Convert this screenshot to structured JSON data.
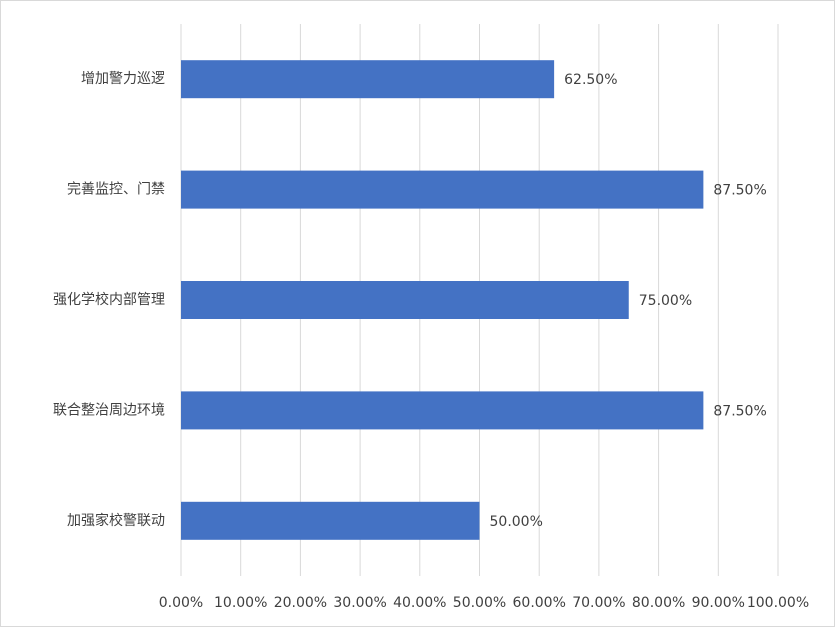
{
  "chart_data": {
    "type": "bar",
    "orientation": "horizontal",
    "categories": [
      "增加警力巡逻",
      "完善监控、门禁",
      "强化学校内部管理",
      "联合整治周边环境",
      "加强家校警联动"
    ],
    "values": [
      62.5,
      87.5,
      75,
      87.5,
      50
    ],
    "value_labels": [
      "62.50%",
      "87.50%",
      "75.00%",
      "87.50%",
      "50.00%"
    ],
    "color": "#4472c4",
    "xlim": [
      0,
      100
    ],
    "xticks": [
      {
        "value": 0,
        "label": "0.00%"
      },
      {
        "value": 10,
        "label": "10.00%"
      },
      {
        "value": 20,
        "label": "20.00%"
      },
      {
        "value": 30,
        "label": "30.00%"
      },
      {
        "value": 40,
        "label": "40.00%"
      },
      {
        "value": 50,
        "label": "50.00%"
      },
      {
        "value": 60,
        "label": "60.00%"
      },
      {
        "value": 70,
        "label": "70.00%"
      },
      {
        "value": 80,
        "label": "80.00%"
      },
      {
        "value": 90,
        "label": "90.00%"
      },
      {
        "value": 100,
        "label": "100.00%"
      }
    ],
    "grid": true
  }
}
